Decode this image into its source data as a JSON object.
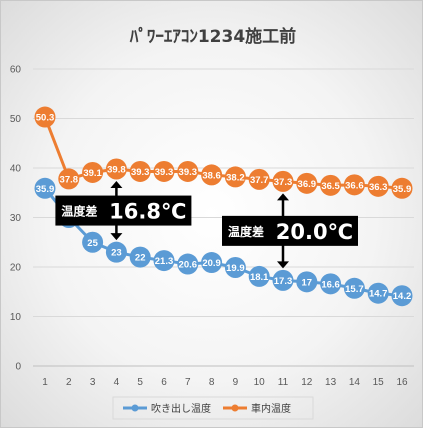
{
  "chart_data": {
    "type": "line",
    "title": "ﾊﾟﾜｰｴｱｺﾝ1234施工前",
    "xlabel": "",
    "ylabel": "",
    "categories": [
      "1",
      "2",
      "3",
      "4",
      "5",
      "6",
      "7",
      "8",
      "9",
      "10",
      "11",
      "12",
      "13",
      "14",
      "15",
      "16"
    ],
    "ylim": [
      0,
      60
    ],
    "yticks": [
      0,
      10,
      20,
      30,
      40,
      50,
      60
    ],
    "grid": true,
    "legend": "bottom",
    "series": [
      {
        "name": "吹き出し温度",
        "color": "#5b9bd5",
        "values": [
          35.9,
          30,
          25,
          23,
          22,
          21.3,
          20.6,
          20.9,
          19.9,
          18.1,
          17.3,
          17,
          16.6,
          15.7,
          14.7,
          14.2
        ],
        "labels": [
          "35.9",
          "30",
          "25",
          "23",
          "22",
          "21.3",
          "20.6",
          "20.9",
          "19.9",
          "18.1",
          "17.3",
          "17",
          "16.6",
          "15.7",
          "14.7",
          "14.2"
        ]
      },
      {
        "name": "車内温度",
        "color": "#ed7d31",
        "values": [
          50.3,
          37.8,
          39.1,
          39.8,
          39.3,
          39.3,
          39.3,
          38.6,
          38.2,
          37.7,
          37.3,
          36.9,
          36.5,
          36.6,
          36.3,
          35.9
        ],
        "labels": [
          "50.3",
          "37.8",
          "39.1",
          "39.8",
          "39.3",
          "39.3",
          "39.3",
          "38.6",
          "38.2",
          "37.7",
          "37.3",
          "36.9",
          "36.5",
          "36.6",
          "36.3",
          "35.9"
        ]
      }
    ],
    "annotations": [
      {
        "label": "温度差",
        "value": "16.8℃",
        "category": "4",
        "from": 23,
        "to": 39.8
      },
      {
        "label": "温度差",
        "value": "20.0℃",
        "category": "11",
        "from": 17.3,
        "to": 37.3
      }
    ]
  }
}
